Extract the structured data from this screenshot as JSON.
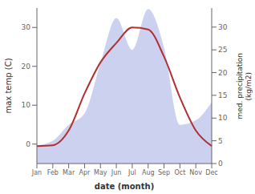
{
  "chart_data": {
    "type": "line",
    "xlabel": "date (month)",
    "ylabel": "max temp (C)",
    "y2label": "med. precipitation\n(kg/m2)",
    "categories": [
      "Jan",
      "Feb",
      "Mar",
      "Apr",
      "May",
      "Jun",
      "Jul",
      "Aug",
      "Sep",
      "Oct",
      "Nov",
      "Dec"
    ],
    "series": [
      {
        "type": "line",
        "color": "#b03030",
        "values": [
          -0.5,
          -0.3,
          3.5,
          13.0,
          21.0,
          26.0,
          30.0,
          29.5,
          22.5,
          12.0,
          3.5,
          -0.5
        ]
      },
      {
        "type": "area",
        "axis": "y2",
        "color": "#b0b8e8",
        "values": [
          4.0,
          5.0,
          8.5,
          11.0,
          22.0,
          32.0,
          25.0,
          34.0,
          25.5,
          8.5,
          9.5,
          13.5
        ]
      }
    ],
    "ylim": [
      -5,
      35
    ],
    "yticks": [
      0,
      10,
      20,
      30
    ],
    "y2lim": [
      0,
      34.2
    ],
    "y2ticks": [
      0,
      5,
      10,
      15,
      20,
      25,
      30
    ],
    "grid": false
  }
}
